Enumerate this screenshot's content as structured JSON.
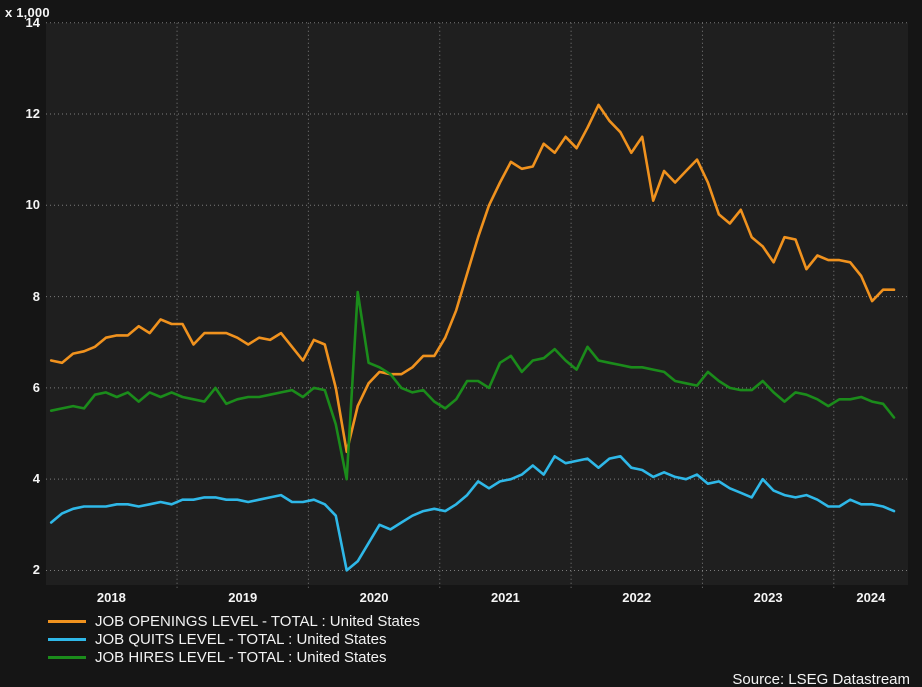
{
  "unit_scale_label": "x 1,000",
  "source_credit": "Source: LSEG Datastream",
  "colors": {
    "background": "#151515",
    "plot_background": "#1f1f1f",
    "gridline": "#9b9b9b",
    "tick_text": "#f5f5f5",
    "openings": "#f0921e",
    "quits": "#2fb8e8",
    "hires": "#1b8c1b"
  },
  "chart_data": {
    "type": "line",
    "title": "",
    "unit_label": "x 1,000",
    "frequency": "monthly",
    "start_month": "2018-01",
    "end_month": "2024-06",
    "ylim": [
      1.68,
      14
    ],
    "y_ticks": [
      14,
      12,
      10,
      8,
      6,
      4,
      2
    ],
    "x_tick_labels": [
      "2018",
      "2019",
      "2020",
      "2021",
      "2022",
      "2023",
      "2024"
    ],
    "grid": "dotted",
    "legend_position": "bottom-left",
    "series": [
      {
        "name": "JOB OPENINGS LEVEL - TOTAL : United States",
        "color": "#f0921e",
        "values": [
          6.6,
          6.55,
          6.75,
          6.8,
          6.9,
          7.1,
          7.15,
          7.15,
          7.35,
          7.2,
          7.5,
          7.4,
          7.4,
          6.95,
          7.2,
          7.2,
          7.2,
          7.1,
          6.95,
          7.1,
          7.05,
          7.2,
          6.9,
          6.6,
          7.05,
          6.95,
          6.0,
          4.6,
          5.6,
          6.1,
          6.35,
          6.3,
          6.3,
          6.45,
          6.7,
          6.7,
          7.1,
          7.7,
          8.5,
          9.3,
          10.0,
          10.5,
          10.95,
          10.8,
          10.85,
          11.35,
          11.15,
          11.5,
          11.25,
          11.7,
          12.2,
          11.85,
          11.6,
          11.15,
          11.5,
          10.1,
          10.75,
          10.5,
          10.75,
          11.0,
          10.5,
          9.8,
          9.6,
          9.9,
          9.3,
          9.1,
          8.75,
          9.3,
          9.25,
          8.6,
          8.9,
          8.8,
          8.8,
          8.75,
          8.45,
          7.9,
          8.15,
          8.15
        ]
      },
      {
        "name": "JOB QUITS LEVEL - TOTAL : United States",
        "color": "#2fb8e8",
        "values": [
          3.05,
          3.25,
          3.35,
          3.4,
          3.4,
          3.4,
          3.45,
          3.45,
          3.4,
          3.45,
          3.5,
          3.45,
          3.55,
          3.55,
          3.6,
          3.6,
          3.55,
          3.55,
          3.5,
          3.55,
          3.6,
          3.65,
          3.5,
          3.5,
          3.55,
          3.45,
          3.2,
          2.0,
          2.2,
          2.6,
          3.0,
          2.9,
          3.05,
          3.2,
          3.3,
          3.35,
          3.3,
          3.45,
          3.65,
          3.95,
          3.8,
          3.95,
          4.0,
          4.1,
          4.3,
          4.1,
          4.5,
          4.35,
          4.4,
          4.45,
          4.25,
          4.45,
          4.5,
          4.25,
          4.2,
          4.05,
          4.15,
          4.05,
          4.0,
          4.1,
          3.9,
          3.95,
          3.8,
          3.7,
          3.6,
          4.0,
          3.75,
          3.65,
          3.6,
          3.65,
          3.55,
          3.4,
          3.4,
          3.55,
          3.45,
          3.45,
          3.4,
          3.3
        ]
      },
      {
        "name": "JOB HIRES LEVEL - TOTAL : United States",
        "color": "#1b8c1b",
        "values": [
          5.5,
          5.55,
          5.6,
          5.55,
          5.85,
          5.9,
          5.8,
          5.9,
          5.7,
          5.9,
          5.8,
          5.9,
          5.8,
          5.75,
          5.7,
          6.0,
          5.65,
          5.75,
          5.8,
          5.8,
          5.85,
          5.9,
          5.95,
          5.8,
          6.0,
          5.95,
          5.2,
          4.0,
          8.1,
          6.55,
          6.45,
          6.3,
          6.0,
          5.9,
          5.95,
          5.7,
          5.55,
          5.75,
          6.15,
          6.15,
          6.0,
          6.55,
          6.7,
          6.35,
          6.6,
          6.65,
          6.85,
          6.6,
          6.4,
          6.9,
          6.6,
          6.55,
          6.5,
          6.45,
          6.45,
          6.4,
          6.35,
          6.15,
          6.1,
          6.05,
          6.35,
          6.15,
          6.0,
          5.95,
          5.95,
          6.15,
          5.9,
          5.7,
          5.9,
          5.85,
          5.75,
          5.6,
          5.75,
          5.75,
          5.8,
          5.7,
          5.65,
          5.35
        ]
      }
    ]
  }
}
